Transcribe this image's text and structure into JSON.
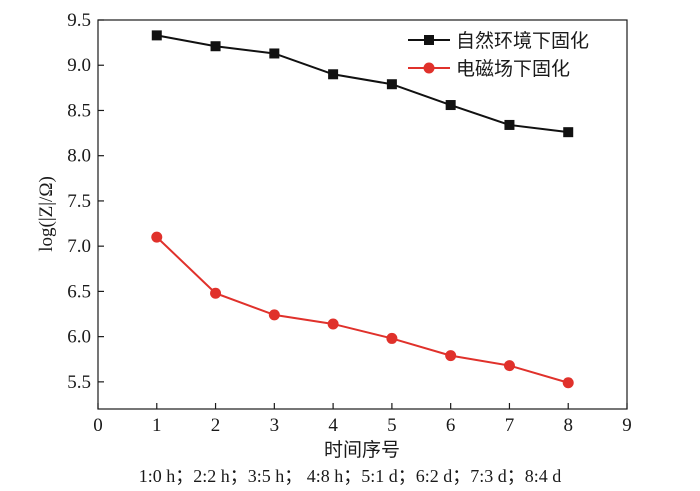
{
  "chart_data": {
    "type": "line",
    "title": "",
    "xlabel": "时间序号",
    "ylabel": "log(|Z|/Ω)",
    "xlim": [
      0,
      9
    ],
    "ylim": [
      5.2,
      9.5
    ],
    "xticks": [
      0,
      1,
      2,
      3,
      4,
      5,
      6,
      7,
      8,
      9
    ],
    "yticks": [
      5.5,
      6.0,
      6.5,
      7.0,
      7.5,
      8.0,
      8.5,
      9.0,
      9.5
    ],
    "xtick_labels": [
      "0",
      "1",
      "2",
      "3",
      "4",
      "5",
      "6",
      "7",
      "8",
      "9"
    ],
    "ytick_labels": [
      "5.5",
      "6.0",
      "6.5",
      "7.0",
      "7.5",
      "8.0",
      "8.5",
      "9.0",
      "9.5"
    ],
    "grid": false,
    "legend_position": "top-right",
    "note": "1:0 h；2:2 h；3:5 h； 4:8 h；5:1 d；6:2 d；7:3 d；8:4 d",
    "series": [
      {
        "name": "自然环境下固化",
        "color": "#111111",
        "marker": "square",
        "x": [
          1,
          2,
          3,
          4,
          5,
          6,
          7,
          8
        ],
        "values": [
          9.33,
          9.21,
          9.13,
          8.9,
          8.79,
          8.56,
          8.34,
          8.26
        ]
      },
      {
        "name": "电磁场下固化",
        "color": "#e0312b",
        "marker": "circle",
        "x": [
          1,
          2,
          3,
          4,
          5,
          6,
          7,
          8
        ],
        "values": [
          7.1,
          6.48,
          6.24,
          6.14,
          5.98,
          5.79,
          5.68,
          5.49
        ]
      }
    ]
  }
}
